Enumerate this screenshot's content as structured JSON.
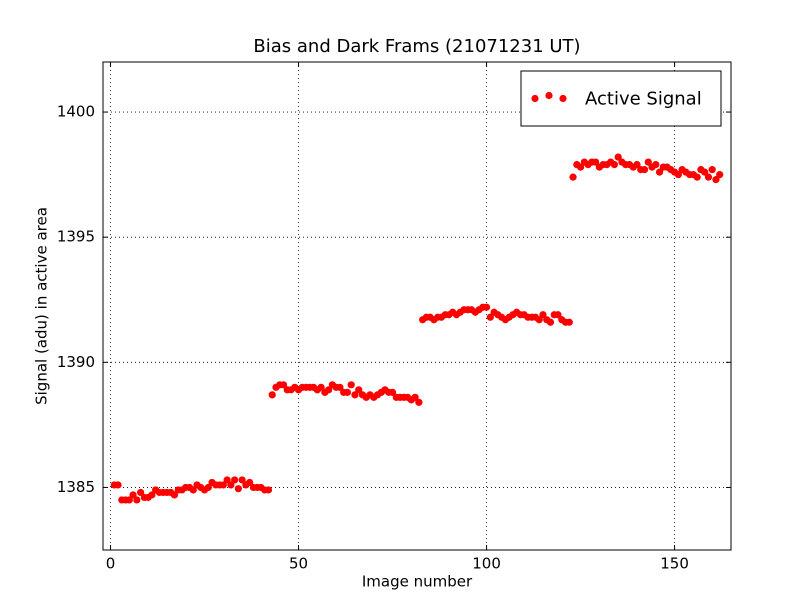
{
  "chart_data": {
    "type": "scatter",
    "title": "Bias and Dark Frams (21071231 UT)",
    "x_label": "Image number",
    "y_label": "Signal (adu) in active area",
    "xlim": [
      -2,
      165
    ],
    "ylim": [
      1382.5,
      1402
    ],
    "xticks": [
      0,
      50,
      100,
      150
    ],
    "yticks": [
      1385,
      1390,
      1395,
      1400
    ],
    "grid": true,
    "legend_position": "upper right",
    "series": [
      {
        "name": "Active Signal",
        "color": "#ff0000",
        "x": [
          1,
          2,
          3,
          4,
          5,
          6,
          7,
          8,
          9,
          10,
          11,
          12,
          13,
          14,
          15,
          16,
          17,
          18,
          19,
          20,
          21,
          22,
          23,
          24,
          25,
          26,
          27,
          28,
          29,
          30,
          31,
          32,
          33,
          34,
          35,
          36,
          37,
          38,
          39,
          40,
          41,
          42,
          43,
          44,
          45,
          46,
          47,
          48,
          49,
          50,
          51,
          52,
          53,
          54,
          55,
          56,
          57,
          58,
          59,
          60,
          61,
          62,
          63,
          64,
          65,
          66,
          67,
          68,
          69,
          70,
          71,
          72,
          73,
          74,
          75,
          76,
          77,
          78,
          79,
          80,
          81,
          82,
          83,
          84,
          85,
          86,
          87,
          88,
          89,
          90,
          91,
          92,
          93,
          94,
          95,
          96,
          97,
          98,
          99,
          100,
          101,
          102,
          103,
          104,
          105,
          106,
          107,
          108,
          109,
          110,
          111,
          112,
          113,
          114,
          115,
          116,
          117,
          118,
          119,
          120,
          121,
          122,
          123,
          124,
          125,
          126,
          127,
          128,
          129,
          130,
          131,
          132,
          133,
          134,
          135,
          136,
          137,
          138,
          139,
          140,
          141,
          142,
          143,
          144,
          145,
          146,
          147,
          148,
          149,
          150,
          151,
          152,
          153,
          154,
          155,
          156,
          157,
          158,
          159,
          160,
          161,
          162
        ],
        "values": [
          1385.1,
          1385.1,
          1384.5,
          1384.5,
          1384.5,
          1384.7,
          1384.5,
          1384.8,
          1384.6,
          1384.6,
          1384.7,
          1384.9,
          1384.8,
          1384.8,
          1384.8,
          1384.8,
          1384.7,
          1384.9,
          1384.9,
          1385.0,
          1385.0,
          1384.9,
          1385.1,
          1385.0,
          1384.9,
          1385.0,
          1385.2,
          1385.1,
          1385.1,
          1385.1,
          1385.3,
          1385.1,
          1385.3,
          1384.95,
          1385.3,
          1385.1,
          1385.2,
          1385.0,
          1385.0,
          1385.0,
          1384.9,
          1384.9,
          1388.7,
          1389.0,
          1389.1,
          1389.1,
          1388.9,
          1388.9,
          1389.0,
          1388.9,
          1389.0,
          1389.0,
          1389.0,
          1389.0,
          1388.9,
          1389.0,
          1388.8,
          1388.9,
          1389.1,
          1389.0,
          1389.0,
          1388.8,
          1388.8,
          1389.1,
          1388.7,
          1388.9,
          1388.7,
          1388.6,
          1388.7,
          1388.6,
          1388.7,
          1388.8,
          1388.9,
          1388.8,
          1388.8,
          1388.6,
          1388.6,
          1388.6,
          1388.6,
          1388.5,
          1388.6,
          1388.4,
          1391.7,
          1391.8,
          1391.8,
          1391.7,
          1391.8,
          1391.8,
          1391.9,
          1391.9,
          1392.0,
          1391.9,
          1392.0,
          1392.1,
          1392.1,
          1392.1,
          1392.0,
          1392.1,
          1392.2,
          1392.2,
          1391.8,
          1392.0,
          1391.9,
          1391.8,
          1391.7,
          1391.8,
          1391.9,
          1392.0,
          1391.9,
          1391.9,
          1391.8,
          1391.8,
          1391.8,
          1391.7,
          1391.9,
          1391.7,
          1391.6,
          1391.9,
          1391.9,
          1391.7,
          1391.6,
          1391.6,
          1397.4,
          1397.9,
          1397.8,
          1398.0,
          1397.9,
          1398.0,
          1398.0,
          1397.8,
          1397.9,
          1397.9,
          1398.0,
          1397.9,
          1398.2,
          1398.0,
          1397.9,
          1397.9,
          1397.8,
          1397.9,
          1397.7,
          1397.7,
          1398.0,
          1397.8,
          1397.9,
          1397.6,
          1397.8,
          1397.8,
          1397.7,
          1397.6,
          1397.5,
          1397.7,
          1397.6,
          1397.5,
          1397.5,
          1397.4,
          1397.7,
          1397.6,
          1397.4,
          1397.7,
          1397.3,
          1397.5
        ]
      }
    ]
  }
}
